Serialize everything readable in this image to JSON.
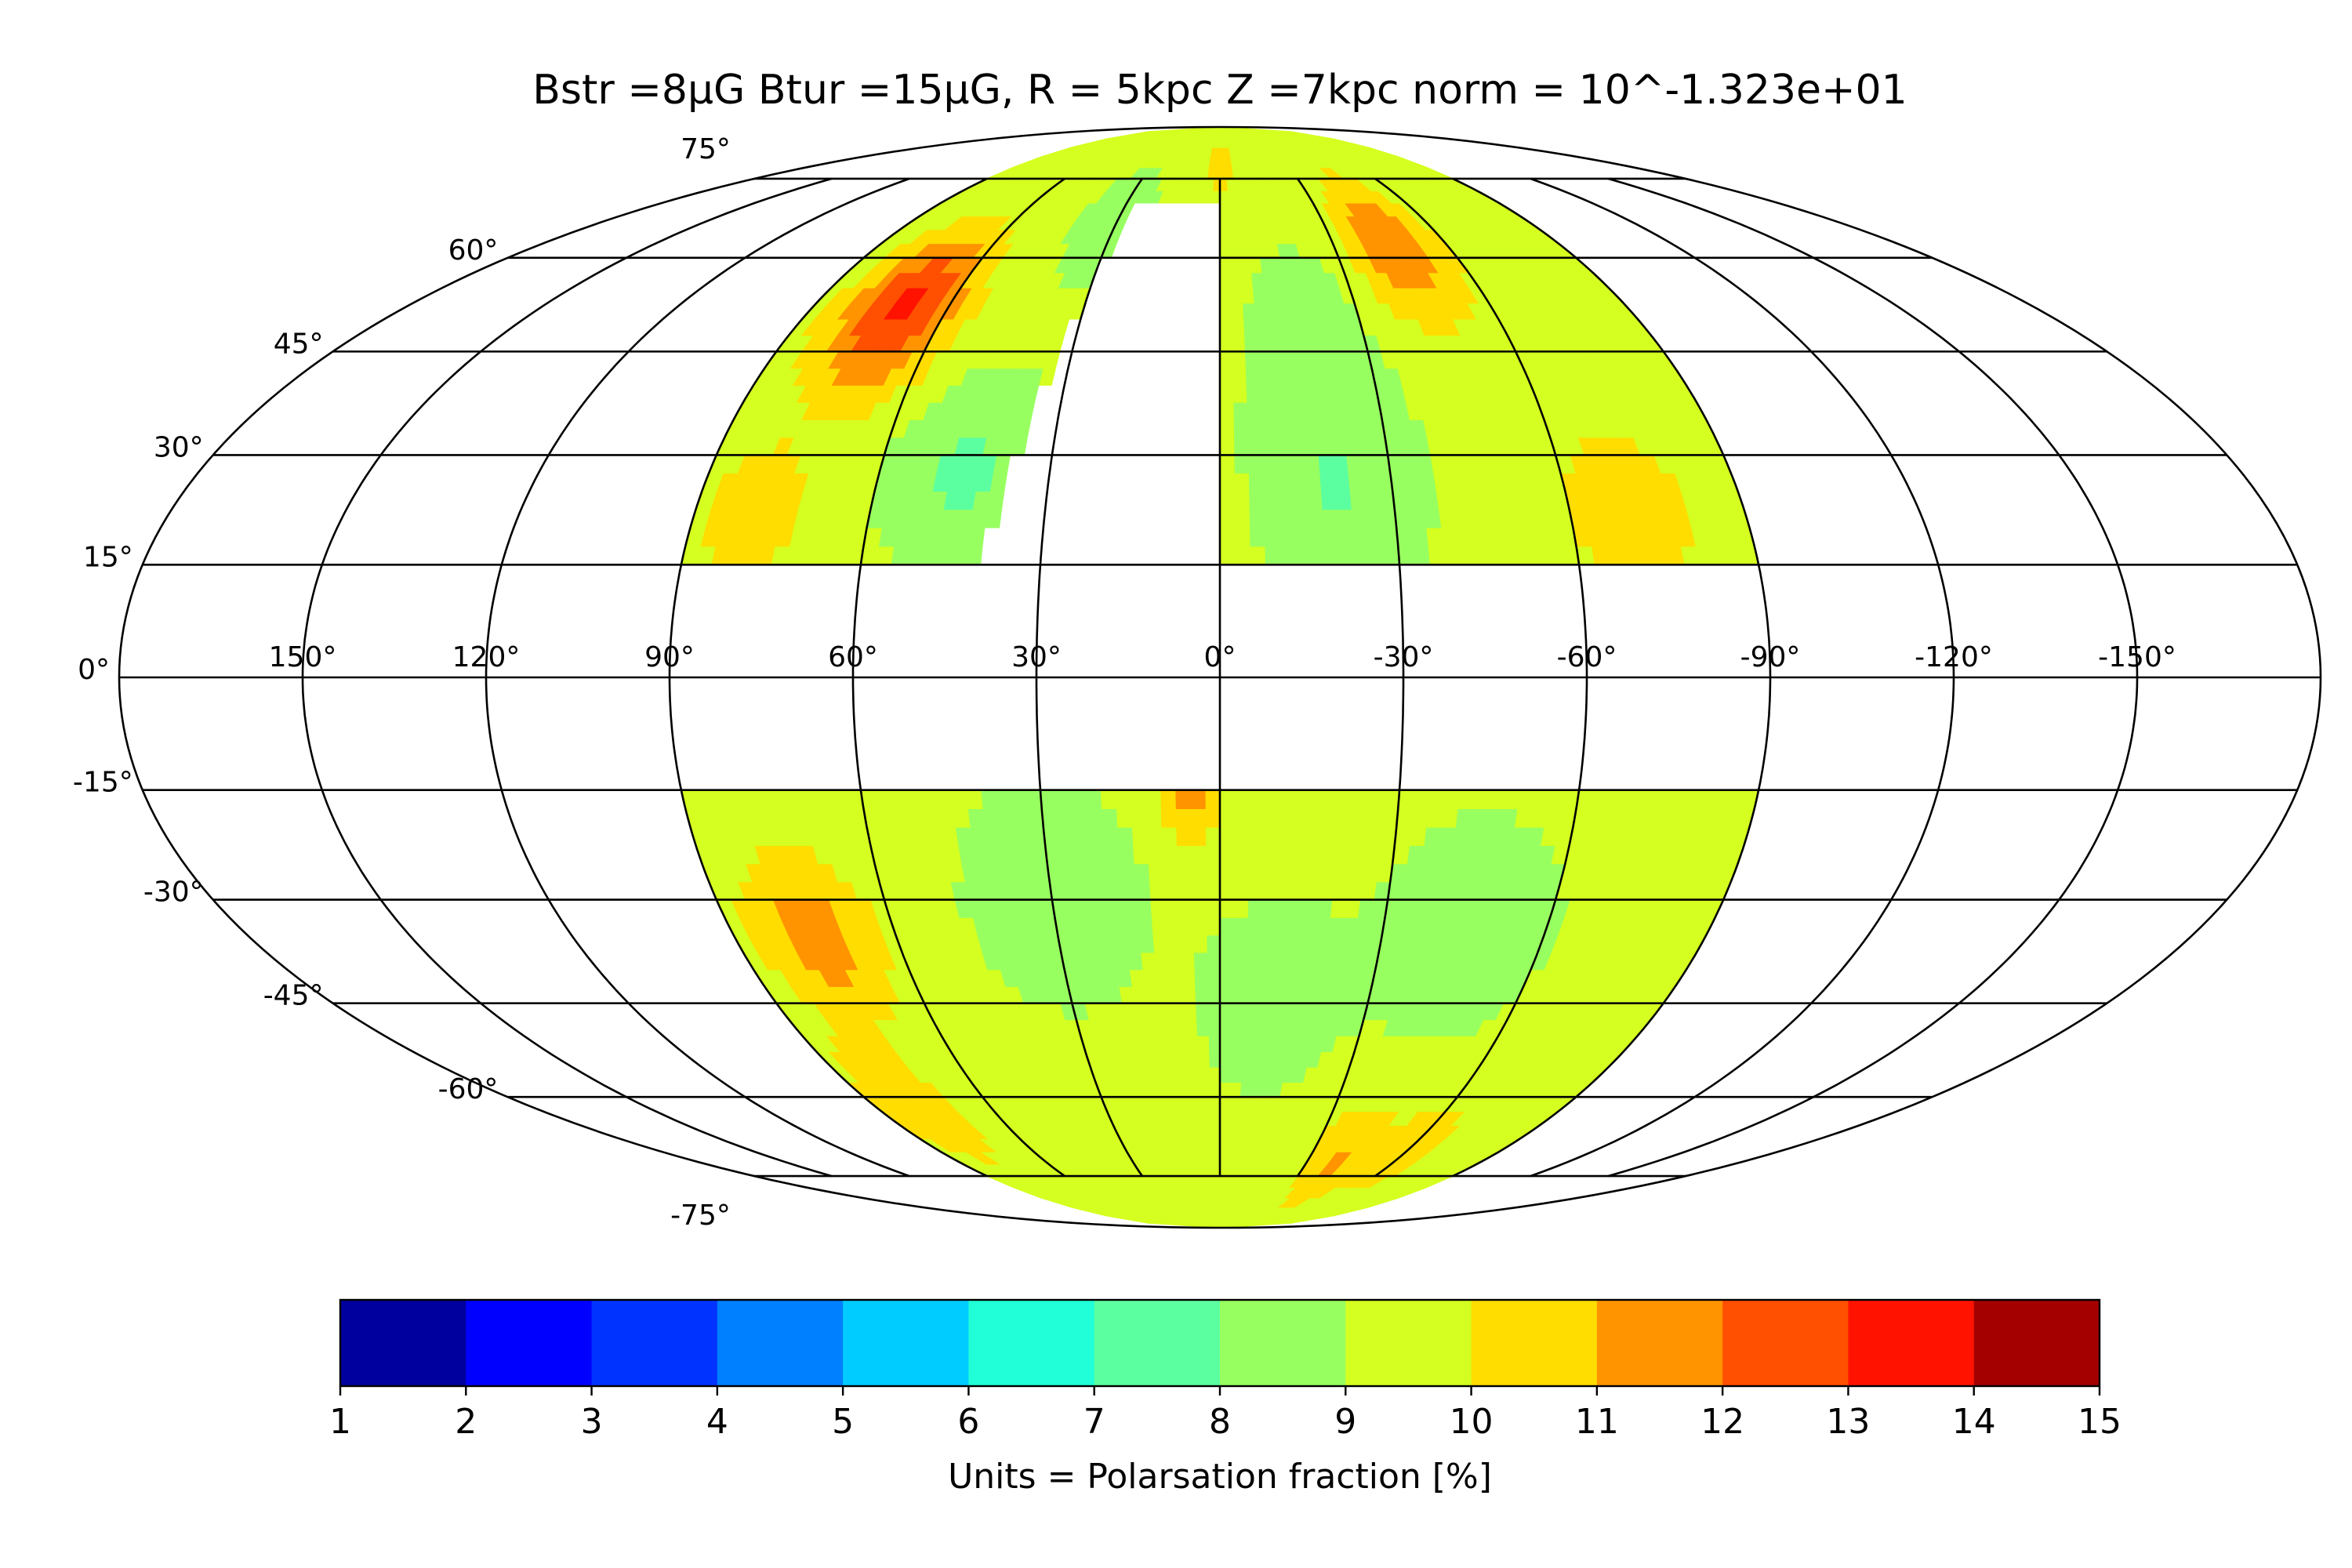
{
  "chart_data": {
    "type": "heatmap",
    "projection": "mollweide",
    "title": "Bstr =8μG Btur =15μG, R = 5kpc Z =7kpc norm = 10^-1.323e+01",
    "longitude_ticks": [
      150,
      120,
      90,
      60,
      30,
      0,
      -30,
      -60,
      -90,
      -120,
      -150
    ],
    "longitude_tick_labels": [
      "150°",
      "120°",
      "90°",
      "60°",
      "30°",
      "0°",
      "-30°",
      "-60°",
      "-90°",
      "-120°",
      "-150°"
    ],
    "latitude_ticks": [
      75,
      60,
      45,
      30,
      15,
      0,
      -15,
      -30,
      -45,
      -60,
      -75
    ],
    "latitude_tick_labels": [
      "75°",
      "60°",
      "45°",
      "30°",
      "15°",
      "0°",
      "-15°",
      "-30°",
      "-45°",
      "-60°",
      "-75°"
    ],
    "data_region": {
      "lon_range": [
        -90,
        90
      ],
      "abs_lat_min": 15,
      "north_gap_lon": [
        0,
        40
      ]
    },
    "colorbar": {
      "min": 1,
      "max": 15,
      "ticks": [
        1,
        2,
        3,
        4,
        5,
        6,
        7,
        8,
        9,
        10,
        11,
        12,
        13,
        14,
        15
      ],
      "label": "Units = Polarsation fraction [%]",
      "colors": [
        "#00009f",
        "#0000ff",
        "#0033ff",
        "#0080ff",
        "#00ccff",
        "#20ffd8",
        "#5cffa0",
        "#98ff60",
        "#d4ff20",
        "#ffdd00",
        "#ff9400",
        "#ff4f00",
        "#ff1300",
        "#a40000"
      ]
    },
    "base_value": 9.3,
    "features": [
      {
        "lon": 70,
        "lat": 52,
        "value": 13.2,
        "spread": 9
      },
      {
        "lon": 80,
        "lat": 22,
        "value": 10.6,
        "spread": 7
      },
      {
        "lon": 45,
        "lat": 28,
        "value": 7.8,
        "spread": 9
      },
      {
        "lon": 30,
        "lat": 66,
        "value": 8.4,
        "spread": 8
      },
      {
        "lon": -45,
        "lat": 62,
        "value": 11.8,
        "spread": 9
      },
      {
        "lon": -70,
        "lat": 22,
        "value": 10.9,
        "spread": 8
      },
      {
        "lon": 3,
        "lat": 20,
        "value": 10.6,
        "spread": 4
      },
      {
        "lon": -20,
        "lat": 25,
        "value": 8.0,
        "spread": 10
      },
      {
        "lon": -20,
        "lat": 48,
        "value": 8.4,
        "spread": 10
      },
      {
        "lon": 75,
        "lat": -35,
        "value": 11.6,
        "spread": 8
      },
      {
        "lon": 5,
        "lat": -16,
        "value": 11.2,
        "spread": 4
      },
      {
        "lon": 30,
        "lat": -30,
        "value": 8.1,
        "spread": 10
      },
      {
        "lon": -10,
        "lat": -45,
        "value": 8.4,
        "spread": 10
      },
      {
        "lon": -45,
        "lat": -35,
        "value": 8.5,
        "spread": 12
      },
      {
        "lon": -40,
        "lat": -72,
        "value": 11.1,
        "spread": 8
      },
      {
        "lon": -60,
        "lat": -70,
        "value": 10.8,
        "spread": 6
      },
      {
        "lon": 80,
        "lat": -62,
        "value": 10.8,
        "spread": 8
      },
      {
        "lon": -85,
        "lat": -20,
        "value": 9.6,
        "spread": 8
      },
      {
        "lon": 0,
        "lat": 78,
        "value": 10.2,
        "spread": 8
      }
    ]
  }
}
